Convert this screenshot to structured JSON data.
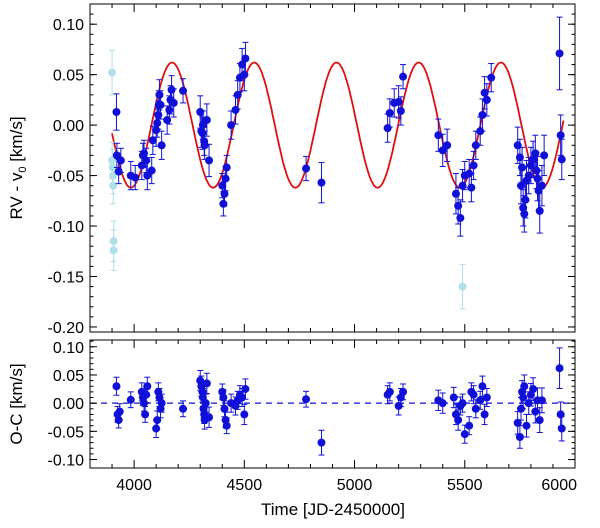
{
  "chart_data": [
    {
      "type": "scatter",
      "panel": "rv",
      "ylabel_main": "RV - v",
      "ylabel_sub": "0",
      "ylabel_unit": " [km/s]",
      "xlim": [
        3800,
        6000
      ],
      "ylim": [
        -0.205,
        0.12
      ],
      "yticks": [
        0.1,
        0.05,
        0.0,
        -0.05,
        -0.1,
        -0.15,
        -0.2
      ],
      "ytick_labels": [
        "0.10",
        "0.05",
        "0.00",
        "-0.05",
        "-0.10",
        "-0.15",
        "-0.20"
      ],
      "model": {
        "type": "sine",
        "amplitude": 0.062,
        "period": 373,
        "t_peak": 4545,
        "color": "#e01010",
        "range": [
          3900,
          5950
        ]
      },
      "series": [
        {
          "name": "rejected",
          "color": "#b0e0e8",
          "x": [
            3900,
            3900,
            3903,
            3905,
            3905,
            3907,
            3907,
            5490
          ],
          "y": [
            0.052,
            -0.035,
            -0.042,
            -0.05,
            -0.06,
            -0.115,
            -0.124,
            -0.16
          ],
          "err": [
            0.022,
            0.018,
            0.018,
            0.018,
            0.018,
            0.02,
            0.02,
            0.022
          ]
        },
        {
          "name": "rv",
          "color": "#1010d8",
          "x": [
            3920,
            3922,
            3930,
            3940,
            3985,
            4005,
            4035,
            4040,
            4045,
            4055,
            4060,
            4080,
            4085,
            4100,
            4105,
            4110,
            4112,
            4115,
            4120,
            4125,
            4150,
            4160,
            4165,
            4170,
            4180,
            4222,
            4300,
            4305,
            4310,
            4312,
            4318,
            4320,
            4330,
            4340,
            4400,
            4405,
            4410,
            4415,
            4420,
            4440,
            4460,
            4470,
            4480,
            4490,
            4500,
            4505,
            4780,
            4850,
            5150,
            5160,
            5180,
            5200,
            5210,
            5220,
            5380,
            5400,
            5420,
            5460,
            5470,
            5480,
            5490,
            5500,
            5520,
            5530,
            5540,
            5550,
            5570,
            5580,
            5590,
            5600,
            5620,
            5740,
            5750,
            5755,
            5760,
            5765,
            5770,
            5775,
            5780,
            5790,
            5800,
            5810,
            5820,
            5825,
            5830,
            5835,
            5840,
            5850,
            5860,
            5930,
            5935,
            5940
          ],
          "y": [
            0.013,
            -0.03,
            -0.046,
            -0.035,
            -0.05,
            -0.052,
            -0.04,
            -0.03,
            -0.028,
            -0.035,
            -0.05,
            -0.045,
            -0.015,
            -0.005,
            0.002,
            0.01,
            0.02,
            0.03,
            0.02,
            -0.02,
            0.005,
            0.015,
            0.025,
            0.035,
            0.022,
            0.034,
            0.013,
            -0.006,
            -0.008,
            0.0,
            -0.016,
            -0.02,
            0.005,
            -0.035,
            -0.06,
            -0.078,
            -0.068,
            -0.053,
            -0.042,
            0.0,
            0.015,
            0.03,
            0.047,
            0.06,
            0.05,
            0.066,
            -0.043,
            -0.057,
            -0.003,
            0.012,
            0.022,
            0.023,
            0.014,
            0.048,
            -0.01,
            -0.025,
            -0.02,
            -0.068,
            -0.08,
            -0.092,
            -0.06,
            -0.05,
            -0.048,
            -0.062,
            -0.04,
            -0.02,
            -0.006,
            0.01,
            0.032,
            0.025,
            0.047,
            -0.02,
            -0.032,
            -0.06,
            -0.042,
            -0.082,
            -0.088,
            -0.074,
            -0.055,
            -0.05,
            -0.04,
            -0.034,
            -0.028,
            -0.045,
            -0.053,
            -0.065,
            -0.085,
            -0.06,
            -0.03,
            0.071,
            -0.01,
            -0.034
          ],
          "err": [
            0.018,
            0.012,
            0.012,
            0.012,
            0.014,
            0.012,
            0.014,
            0.012,
            0.013,
            0.012,
            0.014,
            0.013,
            0.014,
            0.016,
            0.014,
            0.014,
            0.014,
            0.015,
            0.014,
            0.014,
            0.014,
            0.014,
            0.014,
            0.014,
            0.014,
            0.012,
            0.016,
            0.016,
            0.016,
            0.014,
            0.014,
            0.014,
            0.016,
            0.016,
            0.012,
            0.012,
            0.012,
            0.012,
            0.012,
            0.014,
            0.014,
            0.014,
            0.014,
            0.016,
            0.016,
            0.016,
            0.012,
            0.02,
            0.014,
            0.014,
            0.014,
            0.016,
            0.014,
            0.012,
            0.016,
            0.016,
            0.016,
            0.02,
            0.018,
            0.018,
            0.016,
            0.014,
            0.014,
            0.014,
            0.014,
            0.014,
            0.014,
            0.016,
            0.016,
            0.016,
            0.014,
            0.018,
            0.018,
            0.018,
            0.02,
            0.018,
            0.018,
            0.018,
            0.02,
            0.018,
            0.018,
            0.018,
            0.018,
            0.018,
            0.022,
            0.02,
            0.022,
            0.02,
            0.02,
            0.036,
            0.02,
            0.02
          ]
        }
      ]
    },
    {
      "type": "scatter",
      "panel": "residuals",
      "ylabel": "O-C [km/s]",
      "xlabel": "Time [JD-2450000]",
      "xlim": [
        3800,
        6000
      ],
      "ylim": [
        -0.115,
        0.112
      ],
      "yticks": [
        0.1,
        0.05,
        0.0,
        -0.05,
        -0.1
      ],
      "ytick_labels": [
        "0.10",
        "0.05",
        "0.00",
        "-0.05",
        "-0.10"
      ],
      "xticks": [
        4000,
        4500,
        5000,
        5500,
        6000
      ],
      "xtick_labels": [
        "4000",
        "4500",
        "5000",
        "5500",
        "6000"
      ],
      "zero_line": {
        "style": "dashed",
        "color": "#1010d8"
      },
      "series": [
        {
          "name": "residuals",
          "color": "#1010d8",
          "x": [
            3920,
            3925,
            3930,
            3935,
            3985,
            4035,
            4040,
            4045,
            4050,
            4055,
            4060,
            4100,
            4105,
            4110,
            4115,
            4120,
            4125,
            4222,
            4300,
            4305,
            4310,
            4312,
            4315,
            4318,
            4320,
            4325,
            4330,
            4340,
            4400,
            4405,
            4410,
            4415,
            4420,
            4440,
            4460,
            4470,
            4480,
            4490,
            4500,
            4505,
            4780,
            4850,
            5150,
            5160,
            5200,
            5210,
            5220,
            5380,
            5400,
            5450,
            5460,
            5470,
            5480,
            5490,
            5500,
            5520,
            5530,
            5540,
            5550,
            5570,
            5580,
            5590,
            5600,
            5740,
            5750,
            5755,
            5760,
            5765,
            5770,
            5780,
            5790,
            5800,
            5810,
            5820,
            5830,
            5840,
            5850,
            5930,
            5935,
            5940
          ],
          "y": [
            0.03,
            -0.02,
            -0.03,
            -0.015,
            0.006,
            0.02,
            0.01,
            0.0,
            -0.02,
            0.015,
            0.03,
            -0.045,
            -0.03,
            0.02,
            0.01,
            -0.01,
            0.0,
            -0.01,
            0.04,
            0.03,
            0.02,
            0.01,
            -0.01,
            -0.02,
            -0.03,
            0.0,
            0.035,
            -0.025,
            0.02,
            0.01,
            -0.01,
            -0.03,
            -0.04,
            0.0,
            -0.005,
            0.005,
            0.015,
            0.01,
            -0.02,
            0.025,
            0.007,
            -0.07,
            0.015,
            0.02,
            -0.005,
            0.01,
            0.02,
            0.005,
            0.0,
            0.01,
            -0.02,
            -0.03,
            -0.005,
            0.0,
            -0.055,
            -0.04,
            0.02,
            0.015,
            -0.01,
            0.005,
            0.03,
            -0.02,
            0.01,
            -0.035,
            -0.06,
            -0.01,
            0.02,
            0.01,
            0.03,
            -0.04,
            0.0,
            0.015,
            0.025,
            -0.015,
            0.005,
            -0.03,
            0.005,
            0.062,
            -0.02,
            -0.045
          ],
          "err": [
            0.016,
            0.014,
            0.014,
            0.014,
            0.014,
            0.016,
            0.014,
            0.014,
            0.014,
            0.014,
            0.016,
            0.016,
            0.016,
            0.016,
            0.016,
            0.016,
            0.016,
            0.014,
            0.018,
            0.018,
            0.018,
            0.016,
            0.016,
            0.016,
            0.016,
            0.016,
            0.018,
            0.018,
            0.014,
            0.014,
            0.014,
            0.014,
            0.014,
            0.016,
            0.016,
            0.016,
            0.016,
            0.016,
            0.018,
            0.018,
            0.014,
            0.022,
            0.016,
            0.016,
            0.016,
            0.016,
            0.014,
            0.018,
            0.018,
            0.018,
            0.018,
            0.018,
            0.016,
            0.016,
            0.016,
            0.016,
            0.016,
            0.016,
            0.016,
            0.016,
            0.018,
            0.018,
            0.016,
            0.02,
            0.02,
            0.02,
            0.02,
            0.02,
            0.02,
            0.02,
            0.02,
            0.02,
            0.02,
            0.02,
            0.022,
            0.022,
            0.022,
            0.036,
            0.022,
            0.022
          ]
        }
      ]
    }
  ]
}
